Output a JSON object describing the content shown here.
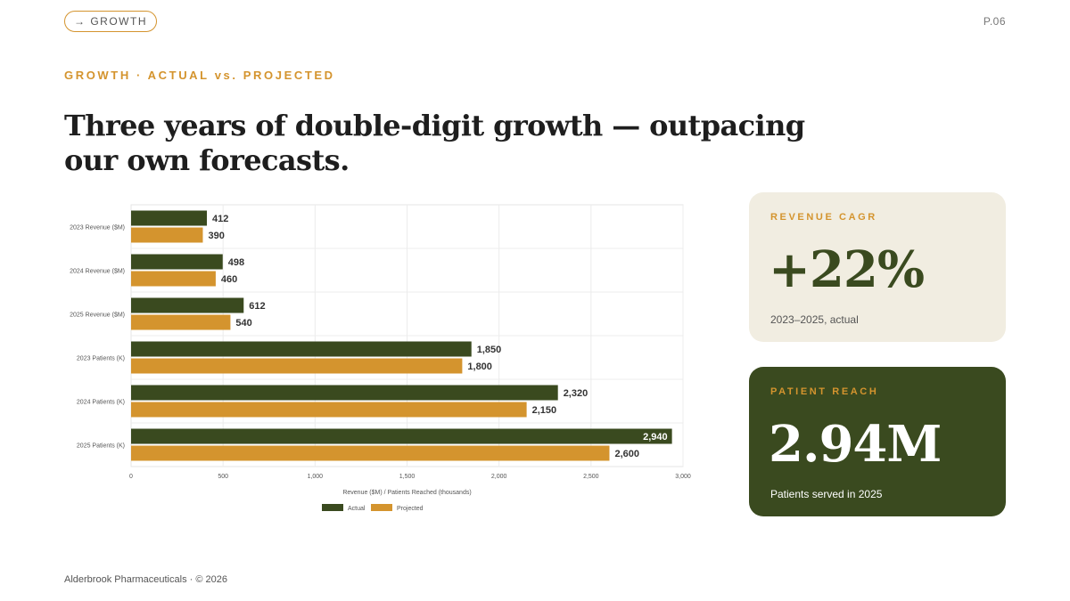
{
  "tag": {
    "label": "→ GROWTH"
  },
  "page_number": "P.06",
  "eyebrow": "GROWTH  ·  ACTUAL vs. PROJECTED",
  "headline": "Three years of double-digit growth — outpacing our own forecasts.",
  "colors": {
    "actual": "#3a4a1f",
    "projected": "#d4942e",
    "accent": "#d4942e",
    "cagr_bg": "#f1ede1",
    "reach_bg": "#3a4a1f"
  },
  "chart_data": {
    "type": "bar",
    "orientation": "horizontal",
    "categories": [
      "2023 Revenue ($M)",
      "2024 Revenue ($M)",
      "2025 Revenue ($M)",
      "2023 Patients (K)",
      "2024 Patients (K)",
      "2025 Patients (K)"
    ],
    "series": [
      {
        "name": "Actual",
        "values": [
          412,
          498,
          612,
          1850,
          2320,
          2940
        ],
        "labels": [
          "412",
          "498",
          "612",
          "1,850",
          "2,320",
          "2,940"
        ]
      },
      {
        "name": "Projected",
        "values": [
          390,
          460,
          540,
          1800,
          2150,
          2600
        ],
        "labels": [
          "390",
          "460",
          "540",
          "1,800",
          "2,150",
          "2,600"
        ]
      }
    ],
    "xlim": [
      0,
      3000
    ],
    "xticks": [
      0,
      500,
      1000,
      1500,
      2000,
      2500,
      3000
    ],
    "xtick_labels": [
      "0",
      "500",
      "1,000",
      "1,500",
      "2,000",
      "2,500",
      "3,000"
    ],
    "xlabel": "Revenue ($M) / Patients Reached (thousands)",
    "grid": true,
    "legend": "bottom"
  },
  "cards": {
    "cagr": {
      "label": "REVENUE CAGR",
      "value": "+22%",
      "caption": "2023–2025, actual"
    },
    "reach": {
      "label": "PATIENT REACH",
      "value": "2.94M",
      "caption": "Patients served in 2025"
    }
  },
  "footer": "Alderbrook Pharmaceuticals · © 2026"
}
